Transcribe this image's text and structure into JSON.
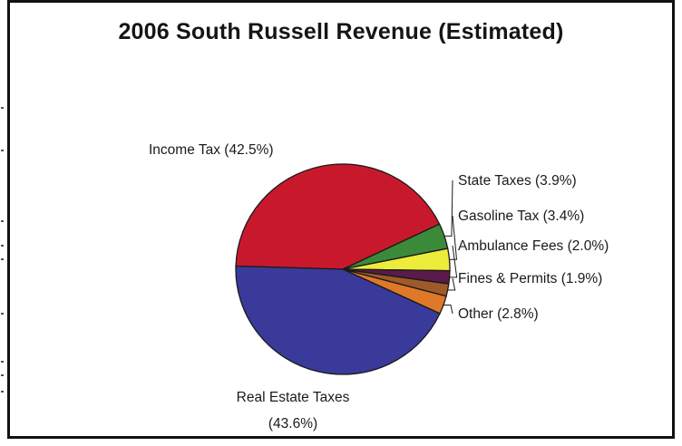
{
  "chart_data": {
    "type": "pie",
    "title": "2006 South Russell Revenue (Estimated)",
    "slices": [
      {
        "label": "Income Tax (42.5%)",
        "value": 42.5,
        "color": "#c8192c"
      },
      {
        "label": "State Taxes (3.9%)",
        "value": 3.9,
        "color": "#3a8a3a"
      },
      {
        "label": "Gasoline Tax (3.4%)",
        "value": 3.4,
        "color": "#ecec3a"
      },
      {
        "label": "Ambulance Fees (2.0%)",
        "value": 2.0,
        "color": "#5a1a4a"
      },
      {
        "label": "Fines & Permits (1.9%)",
        "value": 1.9,
        "color": "#a05a2a"
      },
      {
        "label": "Other (2.8%)",
        "value": 2.8,
        "color": "#e0782a"
      },
      {
        "label": "Real Estate Taxes",
        "label2": "(43.6%)",
        "value": 43.6,
        "color": "#3a3a9a"
      }
    ],
    "legend": "callout labels beside slices",
    "grid": false
  }
}
